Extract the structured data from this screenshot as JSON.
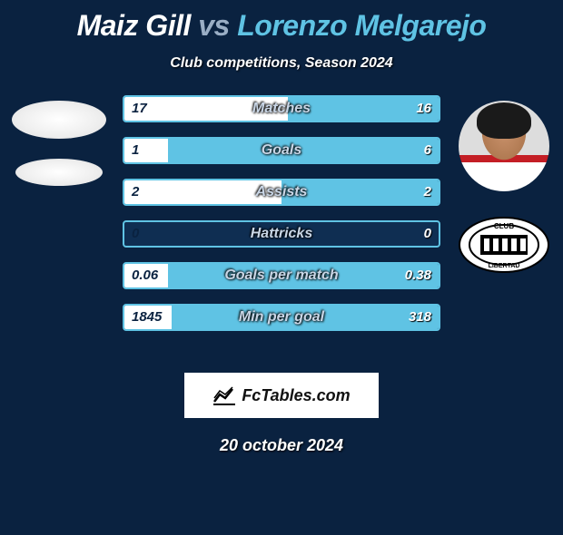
{
  "colors": {
    "bg": "#0a2240",
    "p1": "#ffffff",
    "p2": "#5fc3e4",
    "bar_border": "#5fc3e4",
    "bar_bg": "#0f2e52",
    "bar_label": "#c9d6e6"
  },
  "title": {
    "player1": "Maiz Gill",
    "vs": "vs",
    "player2": "Lorenzo Melgarejo"
  },
  "subtitle": "Club competitions, Season 2024",
  "stats": {
    "rows": [
      {
        "label": "Matches",
        "left": "17",
        "right": "16",
        "left_pct": 52,
        "right_pct": 48
      },
      {
        "label": "Goals",
        "left": "1",
        "right": "6",
        "left_pct": 14,
        "right_pct": 86
      },
      {
        "label": "Assists",
        "left": "2",
        "right": "2",
        "left_pct": 50,
        "right_pct": 50
      },
      {
        "label": "Hattricks",
        "left": "0",
        "right": "0",
        "left_pct": 0,
        "right_pct": 0
      },
      {
        "label": "Goals per match",
        "left": "0.06",
        "right": "0.38",
        "left_pct": 14,
        "right_pct": 86
      },
      {
        "label": "Min per goal",
        "left": "1845",
        "right": "318",
        "left_pct": 15,
        "right_pct": 85
      }
    ]
  },
  "brand": "FcTables.com",
  "date": "20 october 2024",
  "club_logo_text": "CLUB",
  "club_logo_sub": "LIBERTAD"
}
